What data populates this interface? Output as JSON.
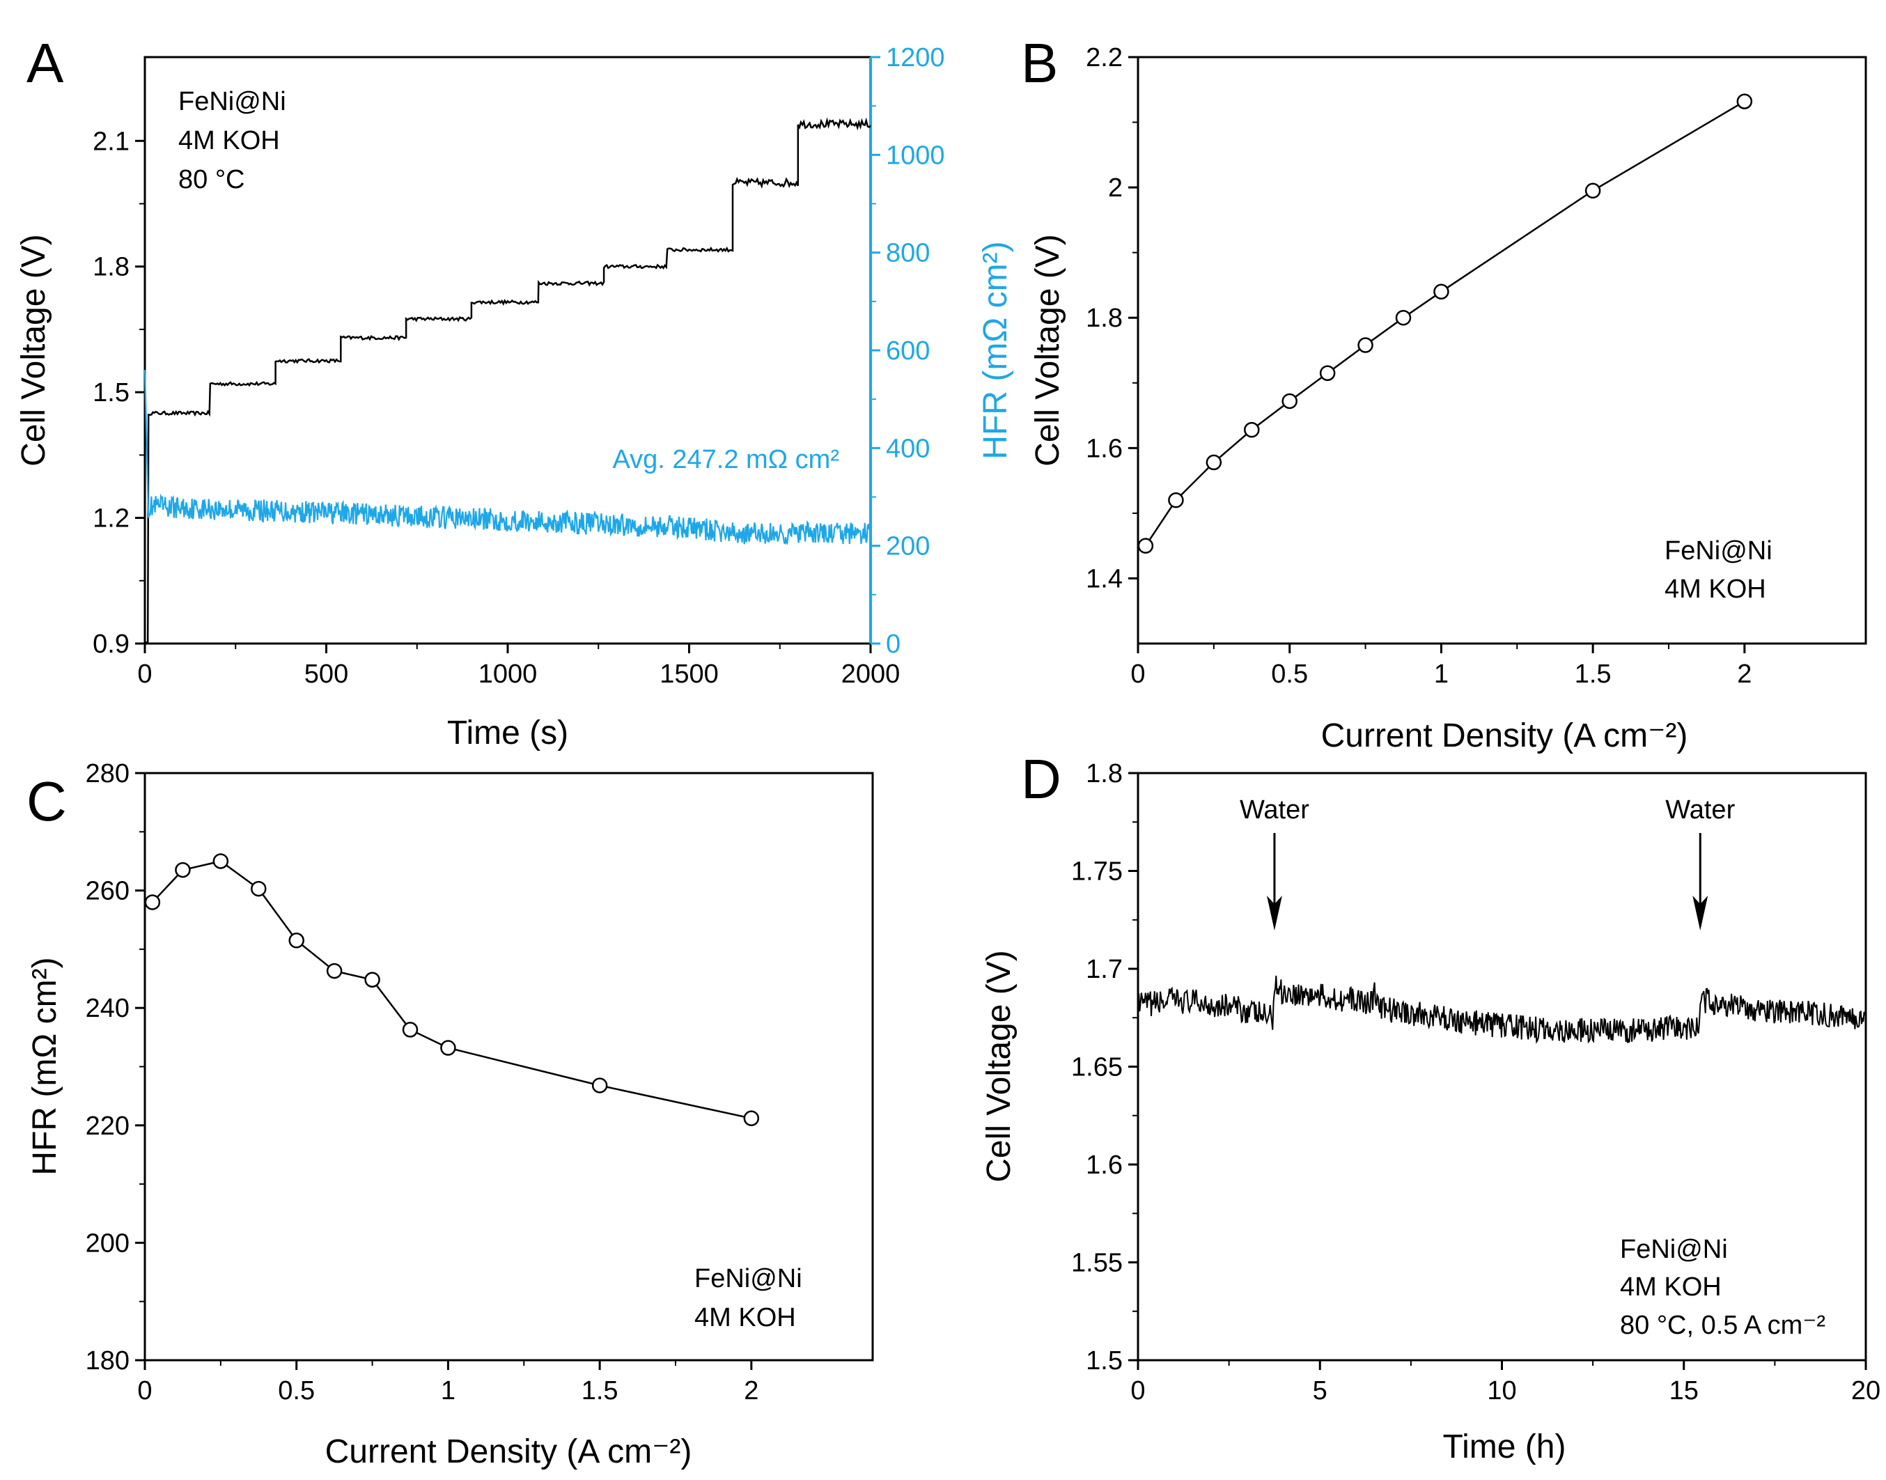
{
  "colors": {
    "black": "#000000",
    "hfr_blue": "#1ea7e8"
  },
  "chart_data": [
    {
      "id": "A",
      "panel_label": "A",
      "type": "line",
      "xlabel": "Time (s)",
      "ylabel": "Cell Voltage (V)",
      "y2label": "HFR (mΩ cm²)",
      "xlim": [
        0,
        2000
      ],
      "ylim": [
        0.9,
        2.3
      ],
      "y2lim": [
        0,
        1200
      ],
      "xticks": [
        0,
        500,
        1000,
        1500,
        2000
      ],
      "yticks": [
        0.9,
        1.2,
        1.5,
        1.8,
        2.1
      ],
      "ytick_labels": [
        "0.9",
        "1.2",
        "1.5",
        "1.8",
        "2.1"
      ],
      "y2ticks": [
        0,
        200,
        400,
        600,
        800,
        1000,
        1200
      ],
      "annotation_lines": [
        "FeNi@Ni",
        "4M KOH",
        "80 °C"
      ],
      "hfr_average_label": "Avg. 247.2 mΩ cm²",
      "series": [
        {
          "name": "Cell Voltage",
          "axis": "left",
          "steps": [
            [
              0,
              0.9
            ],
            [
              10,
              1.45
            ],
            [
              180,
              1.52
            ],
            [
              360,
              1.575
            ],
            [
              540,
              1.63
            ],
            [
              720,
              1.675
            ],
            [
              900,
              1.715
            ],
            [
              1085,
              1.76
            ],
            [
              1265,
              1.8
            ],
            [
              1440,
              1.84
            ],
            [
              1620,
              2.0
            ],
            [
              1800,
              2.14
            ]
          ]
        },
        {
          "name": "HFR",
          "axis": "right",
          "points": [
            [
              0,
              560
            ],
            [
              10,
              280
            ],
            [
              500,
              268
            ],
            [
              1000,
              252
            ],
            [
              1500,
              238
            ],
            [
              1620,
              225
            ],
            [
              2000,
              225
            ]
          ]
        }
      ]
    },
    {
      "id": "B",
      "panel_label": "B",
      "type": "line",
      "xlabel": "Current Density (A cm⁻²)",
      "ylabel": "Cell Voltage (V)",
      "xlim": [
        0,
        2.4
      ],
      "ylim": [
        1.3,
        2.2
      ],
      "xticks": [
        0,
        0.5,
        1,
        1.5,
        2
      ],
      "xtick_labels": [
        "0",
        "0.5",
        "1",
        "1.5",
        "2"
      ],
      "yticks": [
        1.4,
        1.6,
        1.8,
        2.0,
        2.2
      ],
      "ytick_labels": [
        "1.4",
        "1.6",
        "1.8",
        "2",
        "2.2"
      ],
      "annotation_lines": [
        "FeNi@Ni",
        "4M KOH"
      ],
      "x": [
        0.025,
        0.125,
        0.25,
        0.375,
        0.5,
        0.625,
        0.75,
        0.875,
        1.0,
        1.5,
        2.0
      ],
      "y": [
        1.45,
        1.52,
        1.578,
        1.628,
        1.672,
        1.715,
        1.758,
        1.8,
        1.84,
        1.995,
        2.132
      ]
    },
    {
      "id": "C",
      "panel_label": "C",
      "type": "line",
      "xlabel": "Current Density (A cm⁻²)",
      "ylabel": "HFR (mΩ cm²)",
      "xlim": [
        0,
        2.4
      ],
      "ylim": [
        180,
        280
      ],
      "xticks": [
        0,
        0.5,
        1,
        1.5,
        2
      ],
      "xtick_labels": [
        "0",
        "0.5",
        "1",
        "1.5",
        "2"
      ],
      "yticks": [
        180,
        200,
        220,
        240,
        260,
        280
      ],
      "annotation_lines": [
        "FeNi@Ni",
        "4M KOH"
      ],
      "x": [
        0.025,
        0.125,
        0.25,
        0.375,
        0.5,
        0.625,
        0.75,
        0.875,
        1.0,
        1.5,
        2.0
      ],
      "y": [
        258,
        263.5,
        265,
        260.3,
        251.5,
        246.3,
        244.8,
        236.3,
        233.2,
        226.8,
        221.2
      ]
    },
    {
      "id": "D",
      "panel_label": "D",
      "type": "line",
      "xlabel": "Time (h)",
      "ylabel": "Cell Voltage (V)",
      "xlim": [
        0,
        20
      ],
      "ylim": [
        1.5,
        1.8
      ],
      "xticks": [
        0,
        5,
        10,
        15,
        20
      ],
      "yticks": [
        1.5,
        1.55,
        1.6,
        1.65,
        1.7,
        1.75,
        1.8
      ],
      "ytick_labels": [
        "1.5",
        "1.55",
        "1.6",
        "1.65",
        "1.7",
        "1.75",
        "1.8"
      ],
      "annotation_lines": [
        "FeNi@Ni",
        "4M KOH",
        "80 °C, 0.5 A cm⁻²"
      ],
      "events": [
        {
          "label": "Water",
          "x": 3.7
        },
        {
          "label": "Water",
          "x": 15.5
        }
      ],
      "series": [
        {
          "name": "Cell Voltage",
          "points": [
            [
              0,
              1.681
            ],
            [
              1.0,
              1.684
            ],
            [
              2.5,
              1.681
            ],
            [
              3.7,
              1.675
            ],
            [
              3.75,
              1.692
            ],
            [
              4.0,
              1.688
            ],
            [
              6.4,
              1.683
            ],
            [
              6.5,
              1.688
            ],
            [
              6.6,
              1.68
            ],
            [
              9,
              1.673
            ],
            [
              11,
              1.669
            ],
            [
              13,
              1.668
            ],
            [
              15.4,
              1.67
            ],
            [
              15.5,
              1.684
            ],
            [
              17,
              1.679
            ],
            [
              20,
              1.675
            ]
          ]
        }
      ]
    }
  ]
}
